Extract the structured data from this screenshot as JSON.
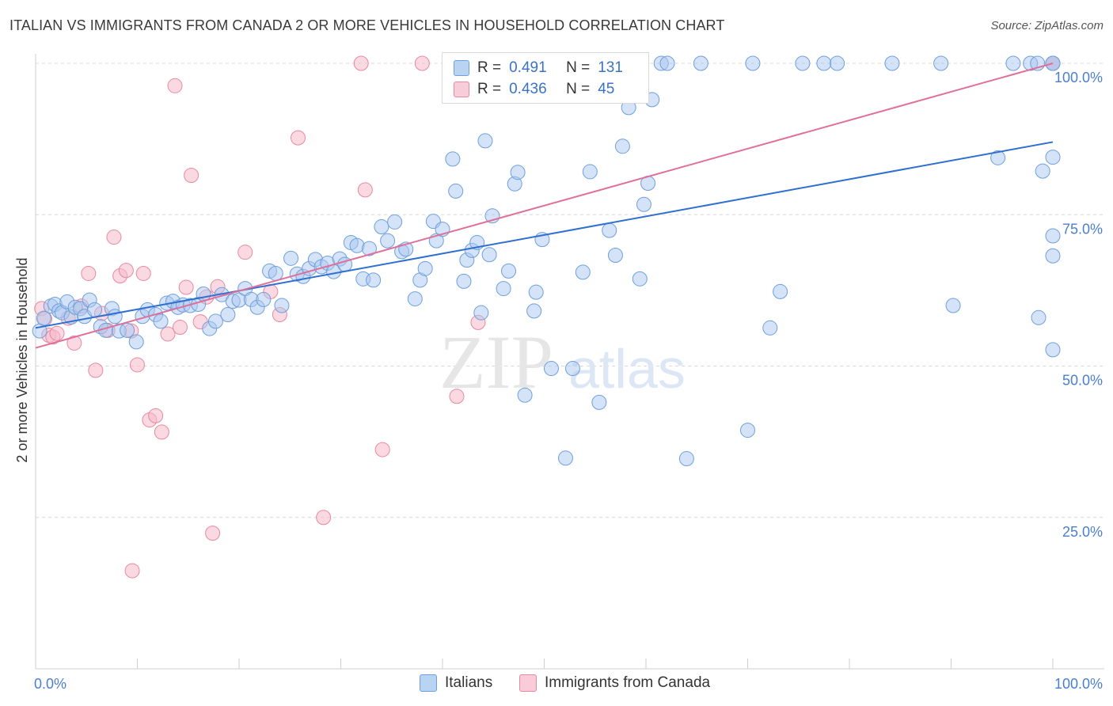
{
  "title": "ITALIAN VS IMMIGRANTS FROM CANADA 2 OR MORE VEHICLES IN HOUSEHOLD CORRELATION CHART",
  "source": "Source: ZipAtlas.com",
  "watermark": {
    "zip": "ZIP",
    "atlas": "atlas"
  },
  "legend": {
    "rows": [
      {
        "r_label": "R =",
        "r_value": "0.491",
        "n_label": "N =",
        "n_value": "131"
      },
      {
        "r_label": "R =",
        "r_value": "0.436",
        "n_label": "N =",
        "n_value": "45"
      }
    ]
  },
  "bottom_legend": {
    "italians": "Italians",
    "immigrants": "Immigrants from Canada"
  },
  "colors": {
    "blue_fill": "#a9c8f0",
    "blue_stroke": "#6f9fdc",
    "blue_line": "#2f6fd0",
    "pink_fill": "#f6b9cc",
    "pink_stroke": "#e8899f",
    "pink_line": "#e0709a",
    "grid": "#d8d8d8",
    "axis_label": "#4a7fd0"
  },
  "chart_data": {
    "type": "scatter",
    "title": "ITALIAN VS IMMIGRANTS FROM CANADA 2 OR MORE VEHICLES IN HOUSEHOLD CORRELATION CHART",
    "xlabel": "",
    "ylabel": "2 or more Vehicles in Household",
    "xlim": [
      0,
      100
    ],
    "ylim": [
      0,
      102
    ],
    "x_tick_labels": [
      {
        "value": 0,
        "label": "0.0%"
      },
      {
        "value": 100,
        "label": "100.0%"
      }
    ],
    "y_tick_labels": [
      {
        "value": 25,
        "label": "25.0%"
      },
      {
        "value": 50,
        "label": "50.0%"
      },
      {
        "value": 75,
        "label": "75.0%"
      },
      {
        "value": 100,
        "label": "100.0%"
      }
    ],
    "grid": true,
    "legend_position": "top-center",
    "series": [
      {
        "name": "Italians",
        "r": 0.491,
        "n": 131,
        "trend": {
          "x": [
            0,
            100
          ],
          "y": [
            56.3,
            87.0
          ]
        },
        "points": [
          [
            0.4,
            55.8
          ],
          [
            0.8,
            57.9
          ],
          [
            1.5,
            59.9
          ],
          [
            1.9,
            60.2
          ],
          [
            2.3,
            59.1
          ],
          [
            2.6,
            58.8
          ],
          [
            3.1,
            60.6
          ],
          [
            3.5,
            58.1
          ],
          [
            3.9,
            59.7
          ],
          [
            4.4,
            59.5
          ],
          [
            4.8,
            58.2
          ],
          [
            5.3,
            60.9
          ],
          [
            5.8,
            59.3
          ],
          [
            6.4,
            56.5
          ],
          [
            6.9,
            55.9
          ],
          [
            7.5,
            59.5
          ],
          [
            7.8,
            58.2
          ],
          [
            8.2,
            55.8
          ],
          [
            9.0,
            55.9
          ],
          [
            9.9,
            54.0
          ],
          [
            10.5,
            58.2
          ],
          [
            11.0,
            59.3
          ],
          [
            11.8,
            58.5
          ],
          [
            12.3,
            57.4
          ],
          [
            12.9,
            60.4
          ],
          [
            13.5,
            60.7
          ],
          [
            14.0,
            59.7
          ],
          [
            14.5,
            60.1
          ],
          [
            15.2,
            60.0
          ],
          [
            16.0,
            60.2
          ],
          [
            16.5,
            61.9
          ],
          [
            17.1,
            56.2
          ],
          [
            17.7,
            57.4
          ],
          [
            18.3,
            61.8
          ],
          [
            18.9,
            58.5
          ],
          [
            19.4,
            60.7
          ],
          [
            20.0,
            60.9
          ],
          [
            20.6,
            62.8
          ],
          [
            21.2,
            61.0
          ],
          [
            21.8,
            59.7
          ],
          [
            22.4,
            61.0
          ],
          [
            23.0,
            65.7
          ],
          [
            23.6,
            65.3
          ],
          [
            24.2,
            60.0
          ],
          [
            25.1,
            67.8
          ],
          [
            25.7,
            65.2
          ],
          [
            26.3,
            64.8
          ],
          [
            26.9,
            66.1
          ],
          [
            27.5,
            67.6
          ],
          [
            28.1,
            66.4
          ],
          [
            28.7,
            67.0
          ],
          [
            29.3,
            65.6
          ],
          [
            29.9,
            67.7
          ],
          [
            30.4,
            66.8
          ],
          [
            31.0,
            70.4
          ],
          [
            31.6,
            69.9
          ],
          [
            32.2,
            64.4
          ],
          [
            32.8,
            69.4
          ],
          [
            33.2,
            64.2
          ],
          [
            34.0,
            73.0
          ],
          [
            34.6,
            70.7
          ],
          [
            35.3,
            73.8
          ],
          [
            36.0,
            68.9
          ],
          [
            36.4,
            69.3
          ],
          [
            37.3,
            61.1
          ],
          [
            37.8,
            64.2
          ],
          [
            38.3,
            66.1
          ],
          [
            39.1,
            73.9
          ],
          [
            39.4,
            70.7
          ],
          [
            40.0,
            72.6
          ],
          [
            41.0,
            84.2
          ],
          [
            41.3,
            78.9
          ],
          [
            42.1,
            64.0
          ],
          [
            42.4,
            67.5
          ],
          [
            42.9,
            69.1
          ],
          [
            43.4,
            70.4
          ],
          [
            43.8,
            58.8
          ],
          [
            44.2,
            87.2
          ],
          [
            44.6,
            68.4
          ],
          [
            44.9,
            74.8
          ],
          [
            46.0,
            62.8
          ],
          [
            46.5,
            65.7
          ],
          [
            47.1,
            80.1
          ],
          [
            47.4,
            82.0
          ],
          [
            48.1,
            45.2
          ],
          [
            49.0,
            59.1
          ],
          [
            49.2,
            62.2
          ],
          [
            49.8,
            70.9
          ],
          [
            50.7,
            49.6
          ],
          [
            51.2,
            100.0
          ],
          [
            52.1,
            34.8
          ],
          [
            52.8,
            49.6
          ],
          [
            53.0,
            100.0
          ],
          [
            53.8,
            65.5
          ],
          [
            54.5,
            82.1
          ],
          [
            55.4,
            44.0
          ],
          [
            56.4,
            72.4
          ],
          [
            57.0,
            68.3
          ],
          [
            57.7,
            86.3
          ],
          [
            58.1,
            100.0
          ],
          [
            58.3,
            92.7
          ],
          [
            59.4,
            64.4
          ],
          [
            59.8,
            76.7
          ],
          [
            60.2,
            80.2
          ],
          [
            60.6,
            94.0
          ],
          [
            61.5,
            100.0
          ],
          [
            62.1,
            100.0
          ],
          [
            64.0,
            34.7
          ],
          [
            65.4,
            100.0
          ],
          [
            70.0,
            39.4
          ],
          [
            70.5,
            100.0
          ],
          [
            72.2,
            56.3
          ],
          [
            73.2,
            62.3
          ],
          [
            75.4,
            100.0
          ],
          [
            77.5,
            100.0
          ],
          [
            78.8,
            100.0
          ],
          [
            84.2,
            100.0
          ],
          [
            89.0,
            100.0
          ],
          [
            90.2,
            60.0
          ],
          [
            94.6,
            84.4
          ],
          [
            96.1,
            100.0
          ],
          [
            97.8,
            100.0
          ],
          [
            98.6,
            58.0
          ],
          [
            99.0,
            82.2
          ],
          [
            98.5,
            100.0
          ],
          [
            100.0,
            100.0
          ],
          [
            100.0,
            52.7
          ],
          [
            100.0,
            71.5
          ],
          [
            100.0,
            68.2
          ],
          [
            100.0,
            84.5
          ],
          [
            100.0,
            100.0
          ]
        ]
      },
      {
        "name": "Immigrants from Canada",
        "r": 0.436,
        "n": 45,
        "trend": {
          "x": [
            0,
            100
          ],
          "y": [
            53.0,
            100.0
          ]
        },
        "points": [
          [
            0.6,
            59.5
          ],
          [
            0.9,
            57.8
          ],
          [
            1.3,
            55.1
          ],
          [
            1.7,
            54.8
          ],
          [
            2.1,
            55.4
          ],
          [
            3.2,
            57.9
          ],
          [
            3.8,
            53.8
          ],
          [
            4.5,
            59.9
          ],
          [
            5.2,
            65.3
          ],
          [
            5.9,
            49.3
          ],
          [
            6.5,
            58.7
          ],
          [
            7.1,
            55.9
          ],
          [
            7.7,
            71.3
          ],
          [
            8.3,
            64.9
          ],
          [
            8.9,
            65.8
          ],
          [
            9.4,
            55.8
          ],
          [
            10.0,
            50.2
          ],
          [
            10.6,
            65.3
          ],
          [
            11.2,
            41.1
          ],
          [
            11.8,
            41.8
          ],
          [
            12.4,
            39.1
          ],
          [
            13.0,
            55.3
          ],
          [
            13.7,
            96.3
          ],
          [
            14.2,
            56.4
          ],
          [
            14.8,
            63.0
          ],
          [
            15.3,
            81.5
          ],
          [
            16.2,
            57.3
          ],
          [
            16.8,
            61.4
          ],
          [
            17.4,
            22.4
          ],
          [
            17.9,
            63.1
          ],
          [
            20.6,
            68.8
          ],
          [
            23.1,
            62.3
          ],
          [
            24.0,
            58.5
          ],
          [
            25.8,
            87.7
          ],
          [
            28.3,
            25.0
          ],
          [
            32.0,
            100.0
          ],
          [
            32.4,
            79.1
          ],
          [
            34.1,
            36.2
          ],
          [
            38.0,
            100.0
          ],
          [
            41.4,
            45.0
          ],
          [
            43.5,
            57.2
          ],
          [
            47.0,
            100.0
          ],
          [
            9.5,
            16.2
          ],
          [
            100.0,
            100.0
          ],
          [
            100.0,
            100.0
          ]
        ]
      }
    ]
  }
}
